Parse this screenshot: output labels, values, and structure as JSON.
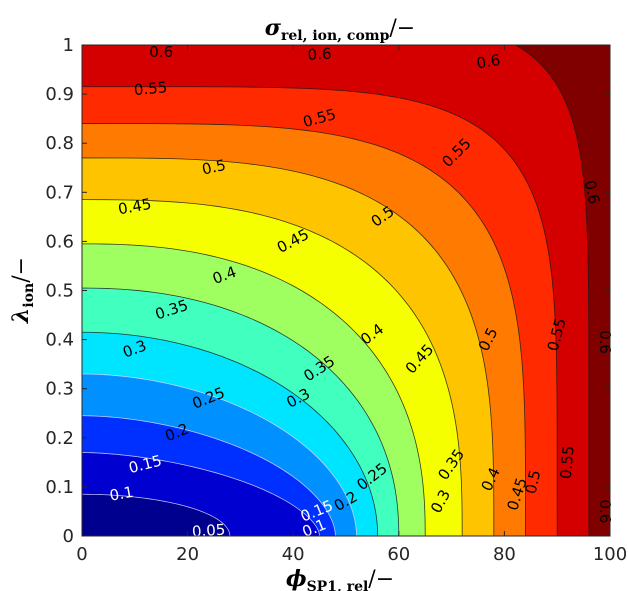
{
  "chart_data": {
    "type": "contour",
    "title": {
      "main": "σ",
      "sub": "rel, ion, comp",
      "rest": "/−"
    },
    "xlabel": {
      "main": "ϕ",
      "sub": "SP1, rel",
      "rest": "/−"
    },
    "ylabel": {
      "main": "λ",
      "sub": "ion",
      "rest": "/−"
    },
    "xlim": [
      0,
      100
    ],
    "ylim": [
      0,
      1
    ],
    "x_ticks": [
      "0",
      "20",
      "40",
      "60",
      "80",
      "100"
    ],
    "y_ticks": [
      "0",
      "0.1",
      "0.2",
      "0.3",
      "0.4",
      "0.5",
      "0.6",
      "0.7",
      "0.8",
      "0.9",
      "1"
    ],
    "levels": [
      0.05,
      0.1,
      0.15,
      0.2,
      0.25,
      0.3,
      0.35,
      0.4,
      0.45,
      0.5,
      0.55,
      0.6
    ],
    "colormap": "jet",
    "band_colors": [
      "#00008f",
      "#0000d0",
      "#0030ff",
      "#0090ff",
      "#00e5ff",
      "#40ffbf",
      "#a0ff60",
      "#f5ff00",
      "#ffc400",
      "#ff7a00",
      "#ff2a00",
      "#d40000",
      "#800000"
    ],
    "contour_labels": [
      {
        "text": "0.05",
        "x": 24,
        "y": 0.01,
        "angle": -4,
        "white": true
      },
      {
        "text": "0.1",
        "x": 44,
        "y": 0.015,
        "angle": -22,
        "white": true
      },
      {
        "text": "0.1",
        "x": 7.5,
        "y": 0.085,
        "angle": -10,
        "white": true
      },
      {
        "text": "0.15",
        "x": 44.5,
        "y": 0.05,
        "angle": -22,
        "white": true
      },
      {
        "text": "0.15",
        "x": 12,
        "y": 0.145,
        "angle": -14,
        "white": true
      },
      {
        "text": "0.2",
        "x": 50,
        "y": 0.07,
        "angle": -30,
        "white": false
      },
      {
        "text": "0.2",
        "x": 18,
        "y": 0.21,
        "angle": -22,
        "white": false
      },
      {
        "text": "0.25",
        "x": 55,
        "y": 0.12,
        "angle": -38,
        "white": false
      },
      {
        "text": "0.25",
        "x": 24,
        "y": 0.28,
        "angle": -22,
        "white": false
      },
      {
        "text": "0.3",
        "x": 68,
        "y": 0.07,
        "angle": -62,
        "white": false
      },
      {
        "text": "0.3",
        "x": 41,
        "y": 0.28,
        "angle": -28,
        "white": false
      },
      {
        "text": "0.3",
        "x": 10,
        "y": 0.38,
        "angle": -20,
        "white": false
      },
      {
        "text": "0.35",
        "x": 70,
        "y": 0.145,
        "angle": -55,
        "white": false
      },
      {
        "text": "0.35",
        "x": 45,
        "y": 0.34,
        "angle": -33,
        "white": false
      },
      {
        "text": "0.35",
        "x": 17,
        "y": 0.46,
        "angle": -18,
        "white": false
      },
      {
        "text": "0.4",
        "x": 77.5,
        "y": 0.115,
        "angle": -65,
        "white": false
      },
      {
        "text": "0.4",
        "x": 55,
        "y": 0.41,
        "angle": -36,
        "white": false
      },
      {
        "text": "0.4",
        "x": 27,
        "y": 0.53,
        "angle": -20,
        "white": false
      },
      {
        "text": "0.45",
        "x": 82.5,
        "y": 0.085,
        "angle": -72,
        "white": false
      },
      {
        "text": "0.45",
        "x": 64,
        "y": 0.36,
        "angle": -48,
        "white": false
      },
      {
        "text": "0.45",
        "x": 40,
        "y": 0.6,
        "angle": -28,
        "white": false
      },
      {
        "text": "0.45",
        "x": 10,
        "y": 0.67,
        "angle": -10,
        "white": false
      },
      {
        "text": "0.5",
        "x": 85.5,
        "y": 0.11,
        "angle": -78,
        "white": false
      },
      {
        "text": "0.5",
        "x": 77,
        "y": 0.4,
        "angle": -63,
        "white": false
      },
      {
        "text": "0.5",
        "x": 57,
        "y": 0.65,
        "angle": -35,
        "white": false
      },
      {
        "text": "0.5",
        "x": 25,
        "y": 0.75,
        "angle": -12,
        "white": false
      },
      {
        "text": "0.55",
        "x": 92,
        "y": 0.15,
        "angle": -85,
        "white": false
      },
      {
        "text": "0.55",
        "x": 90,
        "y": 0.41,
        "angle": -75,
        "white": false
      },
      {
        "text": "0.55",
        "x": 71,
        "y": 0.78,
        "angle": -45,
        "white": false
      },
      {
        "text": "0.55",
        "x": 45,
        "y": 0.85,
        "angle": -15,
        "white": false
      },
      {
        "text": "0.55",
        "x": 13,
        "y": 0.91,
        "angle": -5,
        "white": false
      },
      {
        "text": "0.6",
        "x": 99,
        "y": 0.05,
        "angle": 90,
        "white": false
      },
      {
        "text": "0.6",
        "x": 99,
        "y": 0.395,
        "angle": 90,
        "white": false
      },
      {
        "text": "0.6",
        "x": 96.5,
        "y": 0.7,
        "angle": 78,
        "white": false
      },
      {
        "text": "0.6",
        "x": 77,
        "y": 0.965,
        "angle": -10,
        "white": false
      },
      {
        "text": "0.6",
        "x": 45,
        "y": 0.98,
        "angle": -3,
        "white": false
      },
      {
        "text": "0.6",
        "x": 15,
        "y": 0.985,
        "angle": 0,
        "white": false
      }
    ]
  }
}
